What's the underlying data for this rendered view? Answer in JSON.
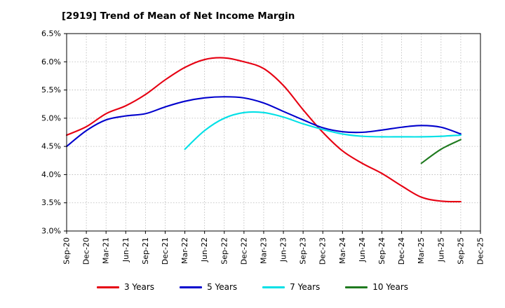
{
  "title": "[2919]  Trend of Mean of Net Income Margin",
  "chart_data": {
    "type": "line",
    "x": [
      "Sep-20",
      "Dec-20",
      "Mar-21",
      "Jun-21",
      "Sep-21",
      "Dec-21",
      "Mar-22",
      "Jun-22",
      "Sep-22",
      "Dec-22",
      "Mar-23",
      "Jun-23",
      "Sep-23",
      "Dec-23",
      "Mar-24",
      "Jun-24",
      "Sep-24",
      "Dec-24",
      "Mar-25",
      "Jun-25",
      "Sep-25",
      "Dec-25"
    ],
    "ylim": [
      3.0,
      6.5
    ],
    "ytick_step": 0.5,
    "y_tick_suffix": "%",
    "grid": true,
    "legend_position": "bottom",
    "series": [
      {
        "name": "3 Years",
        "color": "#e60012",
        "values": [
          4.7,
          4.85,
          5.08,
          5.22,
          5.42,
          5.68,
          5.9,
          6.04,
          6.07,
          6.0,
          5.88,
          5.58,
          5.15,
          4.75,
          4.42,
          4.2,
          4.02,
          3.8,
          3.6,
          3.53,
          3.52,
          null
        ]
      },
      {
        "name": "5 Years",
        "color": "#0000cd",
        "values": [
          4.5,
          4.78,
          4.97,
          5.04,
          5.08,
          5.2,
          5.3,
          5.36,
          5.38,
          5.36,
          5.27,
          5.12,
          4.97,
          4.83,
          4.76,
          4.75,
          4.79,
          4.84,
          4.87,
          4.84,
          4.72,
          null
        ]
      },
      {
        "name": "7 Years",
        "color": "#00e0e6",
        "values": [
          null,
          null,
          null,
          null,
          null,
          null,
          4.45,
          4.78,
          5.0,
          5.1,
          5.1,
          5.02,
          4.9,
          4.8,
          4.72,
          4.68,
          4.67,
          4.67,
          4.67,
          4.68,
          4.7,
          null
        ]
      },
      {
        "name": "10 Years",
        "color": "#1f7a1f",
        "values": [
          null,
          null,
          null,
          null,
          null,
          null,
          null,
          null,
          null,
          null,
          null,
          null,
          null,
          null,
          null,
          null,
          null,
          null,
          4.2,
          4.45,
          4.62,
          null
        ]
      }
    ]
  }
}
